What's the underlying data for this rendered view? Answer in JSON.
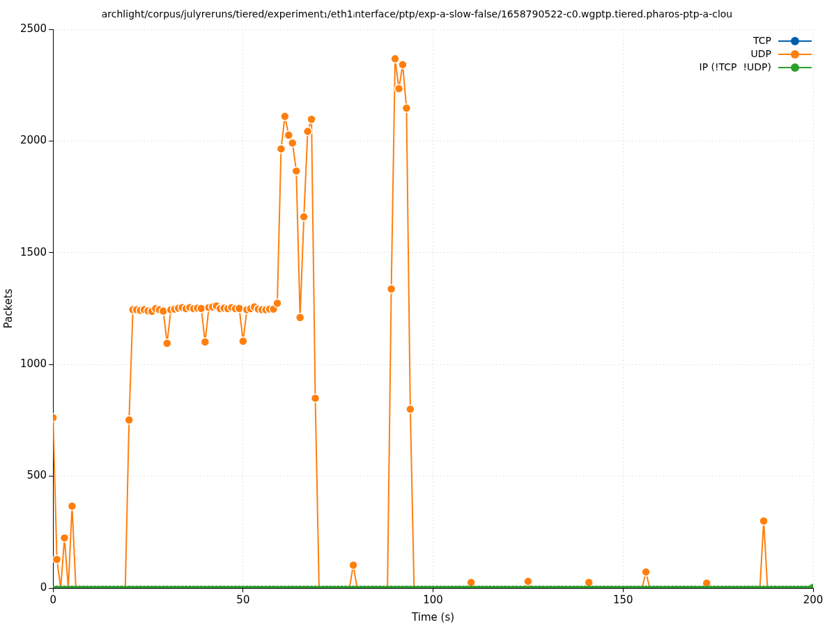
{
  "chart_data": {
    "type": "line",
    "title": "archlight/corpus/julyreruns/tiered/experiment₁/eth1ᵢnterface/ptp/exp-a-slow-false/1658790522-c0.wgptp.tiered.pharos-ptp-a-clou",
    "xlabel": "Time (s)",
    "ylabel": "Packets",
    "x": [
      0,
      1,
      2,
      3,
      4,
      5,
      6,
      7,
      8,
      9,
      10,
      11,
      12,
      13,
      14,
      15,
      16,
      17,
      18,
      19,
      20,
      21,
      22,
      23,
      24,
      25,
      26,
      27,
      28,
      29,
      30,
      31,
      32,
      33,
      34,
      35,
      36,
      37,
      38,
      39,
      40,
      41,
      42,
      43,
      44,
      45,
      46,
      47,
      48,
      49,
      50,
      51,
      52,
      53,
      54,
      55,
      56,
      57,
      58,
      59,
      60,
      61,
      62,
      63,
      64,
      65,
      66,
      67,
      68,
      69,
      70,
      71,
      72,
      73,
      74,
      75,
      76,
      77,
      78,
      79,
      80,
      81,
      82,
      83,
      84,
      85,
      86,
      87,
      88,
      89,
      90,
      91,
      92,
      93,
      94,
      95,
      96,
      97,
      98,
      99,
      100,
      101,
      102,
      103,
      104,
      105,
      106,
      107,
      108,
      109,
      110,
      111,
      112,
      113,
      114,
      115,
      116,
      117,
      118,
      119,
      120,
      121,
      122,
      123,
      124,
      125,
      126,
      127,
      128,
      129,
      130,
      131,
      132,
      133,
      134,
      135,
      136,
      137,
      138,
      139,
      140,
      141,
      142,
      143,
      144,
      145,
      146,
      147,
      148,
      149,
      150,
      151,
      152,
      153,
      154,
      155,
      156,
      157,
      158,
      159,
      160,
      161,
      162,
      163,
      164,
      165,
      166,
      167,
      168,
      169,
      170,
      171,
      172,
      173,
      174,
      175,
      176,
      177,
      178,
      179,
      180,
      181,
      182,
      183,
      184,
      185,
      186,
      187,
      188,
      189,
      190,
      191,
      192,
      193,
      194,
      195,
      196,
      197,
      198,
      199,
      200
    ],
    "series": [
      {
        "name": "TCP",
        "color": "#0060ad",
        "values": [
          null,
          null,
          null,
          null,
          null,
          null,
          null,
          null,
          null,
          null,
          null,
          null,
          null,
          null,
          null,
          null,
          null,
          null,
          null,
          null,
          null,
          null,
          null,
          null,
          null,
          null,
          null,
          null,
          null,
          null,
          null,
          null,
          null,
          null,
          null,
          null,
          null,
          null,
          null,
          null,
          null,
          null,
          null,
          null,
          null,
          null,
          null,
          null,
          null,
          null,
          null,
          null,
          null,
          null,
          null,
          null,
          null,
          null,
          null,
          null,
          null,
          null,
          null,
          null,
          null,
          null,
          null,
          null,
          null,
          null,
          null,
          null,
          null,
          null,
          null,
          null,
          null,
          null,
          null,
          null,
          null,
          null,
          null,
          null,
          null,
          null,
          null,
          null,
          null,
          null,
          null,
          null,
          null,
          null,
          null,
          null,
          null,
          null,
          null,
          null,
          null,
          null,
          null,
          null,
          null,
          null,
          null,
          null,
          null,
          null,
          null,
          null,
          null,
          null,
          null,
          null,
          null,
          null,
          null,
          null,
          null,
          null,
          null,
          null,
          null,
          null,
          null,
          null,
          null,
          null,
          null,
          null,
          null,
          null,
          null,
          null,
          null,
          null,
          null,
          null,
          null,
          null,
          null,
          null,
          null,
          null,
          null,
          null,
          null,
          null,
          null,
          null,
          null,
          null,
          null,
          null,
          null,
          null,
          null,
          null,
          null,
          null,
          null,
          null,
          null,
          null,
          null,
          null,
          null,
          null,
          null,
          null,
          null,
          null,
          null,
          null,
          null,
          null,
          null,
          null,
          null,
          null,
          null,
          null,
          null,
          null,
          null,
          null,
          null,
          null,
          null,
          null,
          null,
          null,
          null,
          null,
          null,
          null,
          null,
          null,
          null
        ]
      },
      {
        "name": "UDP",
        "color": "#ff7f0e",
        "values": [
          762,
          128,
          0,
          224,
          0,
          366,
          0,
          null,
          null,
          null,
          null,
          null,
          null,
          null,
          null,
          null,
          null,
          null,
          null,
          0,
          752,
          1245,
          1245,
          1242,
          1245,
          1240,
          1238,
          1250,
          1245,
          1239,
          1095,
          1245,
          1248,
          1252,
          1255,
          1250,
          1255,
          1250,
          1252,
          1251,
          1101,
          1255,
          1258,
          1262,
          1250,
          1252,
          1250,
          1255,
          1250,
          1251,
          1104,
          1245,
          1250,
          1258,
          1248,
          1245,
          1245,
          1248,
          1248,
          1274,
          1965,
          2110,
          2026,
          1991,
          1866,
          1210,
          1661,
          2043,
          2097,
          849,
          0,
          null,
          null,
          null,
          null,
          null,
          null,
          null,
          0,
          102,
          0,
          null,
          null,
          null,
          null,
          null,
          null,
          null,
          0,
          1338,
          2368,
          2234,
          2342,
          2147,
          800,
          0,
          null,
          null,
          null,
          null,
          null,
          null,
          null,
          null,
          null,
          null,
          null,
          null,
          null,
          0,
          25,
          0,
          null,
          null,
          null,
          null,
          null,
          null,
          null,
          null,
          null,
          null,
          null,
          null,
          0,
          30,
          0,
          null,
          null,
          null,
          null,
          null,
          null,
          null,
          null,
          null,
          null,
          null,
          null,
          null,
          0,
          25,
          0,
          null,
          null,
          null,
          null,
          null,
          null,
          null,
          null,
          null,
          null,
          null,
          null,
          0,
          72,
          0,
          null,
          null,
          null,
          null,
          null,
          null,
          null,
          null,
          null,
          null,
          null,
          null,
          null,
          0,
          22,
          0,
          null,
          null,
          null,
          null,
          null,
          null,
          null,
          null,
          null,
          null,
          null,
          null,
          0,
          300,
          0,
          null,
          null,
          null,
          null,
          null,
          null,
          null,
          null,
          null,
          null,
          null,
          null
        ]
      },
      {
        "name": "IP (!TCP  !UDP)",
        "color": "#2ca02c",
        "values": [
          0,
          0,
          0,
          0,
          0,
          0,
          0,
          0,
          0,
          0,
          0,
          0,
          0,
          0,
          0,
          0,
          0,
          0,
          0,
          0,
          0,
          0,
          0,
          0,
          0,
          0,
          0,
          0,
          0,
          0,
          0,
          0,
          0,
          0,
          0,
          0,
          0,
          0,
          0,
          0,
          0,
          0,
          0,
          0,
          0,
          0,
          0,
          0,
          0,
          0,
          0,
          0,
          0,
          0,
          0,
          0,
          0,
          0,
          0,
          0,
          0,
          0,
          0,
          0,
          0,
          0,
          0,
          0,
          0,
          0,
          0,
          0,
          0,
          0,
          0,
          0,
          0,
          0,
          0,
          0,
          0,
          0,
          0,
          0,
          0,
          0,
          0,
          0,
          0,
          0,
          0,
          0,
          0,
          0,
          0,
          0,
          0,
          0,
          0,
          0,
          0,
          0,
          0,
          0,
          0,
          0,
          0,
          0,
          0,
          0,
          0,
          0,
          0,
          0,
          0,
          0,
          0,
          0,
          0,
          0,
          0,
          0,
          0,
          0,
          0,
          0,
          0,
          0,
          0,
          0,
          0,
          0,
          0,
          0,
          0,
          0,
          0,
          0,
          0,
          0,
          0,
          0,
          0,
          0,
          0,
          0,
          0,
          0,
          0,
          0,
          0,
          0,
          0,
          0,
          0,
          0,
          0,
          0,
          0,
          0,
          0,
          0,
          0,
          0,
          0,
          0,
          0,
          0,
          0,
          0,
          0,
          0,
          0,
          0,
          0,
          0,
          0,
          0,
          0,
          0,
          0,
          0,
          0,
          0,
          0,
          0,
          0,
          0,
          0,
          0,
          0,
          0,
          0,
          0,
          0,
          0,
          0,
          0,
          0,
          0,
          0
        ]
      }
    ],
    "xlim": [
      0,
      200
    ],
    "xticks": [
      0,
      50,
      100,
      150,
      200
    ],
    "ylim": [
      0,
      2500
    ],
    "yticks": [
      0,
      500,
      1000,
      1500,
      2000,
      2500
    ],
    "grid": true,
    "legend": "top right",
    "marker": "circle",
    "line_style": "solid"
  }
}
